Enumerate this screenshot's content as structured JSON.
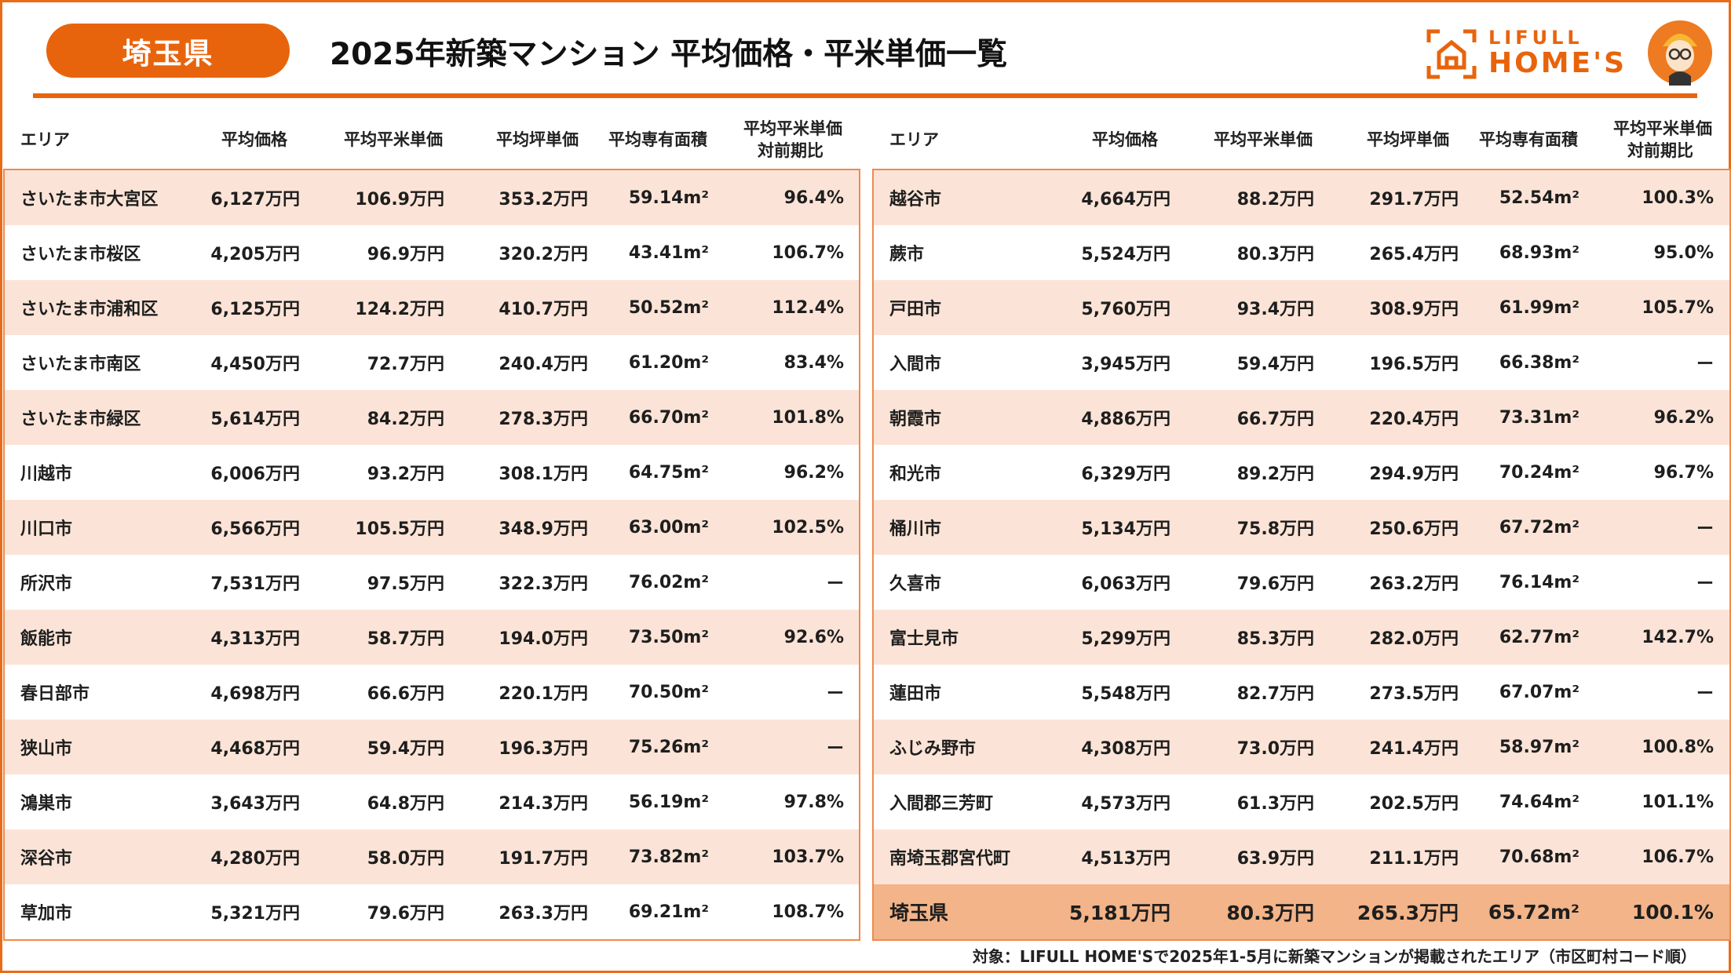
{
  "header": {
    "prefecture_badge": "埼玉県",
    "title": "2025年新築マンション 平均価格・平米単価一覧",
    "logo": {
      "line1": "LIFULL",
      "line2": "HOME'S"
    }
  },
  "colors": {
    "accent": "#E8640C",
    "row_alt": "#FBE4D7",
    "total_row": "#F2B488"
  },
  "columns": {
    "area": "エリア",
    "price": "平均価格",
    "sqm_price": "平均平米単価",
    "tsubo_price": "平均坪単価",
    "floor_area": "平均専有面積",
    "ratio_line1": "平均平米単価",
    "ratio_line2": "対前期比"
  },
  "left_rows": [
    {
      "area": "さいたま市大宮区",
      "price": "6,127万円",
      "sqm": "106.9万円",
      "tsubo": "353.2万円",
      "size": "59.14m²",
      "ratio": "96.4%"
    },
    {
      "area": "さいたま市桜区",
      "price": "4,205万円",
      "sqm": "96.9万円",
      "tsubo": "320.2万円",
      "size": "43.41m²",
      "ratio": "106.7%"
    },
    {
      "area": "さいたま市浦和区",
      "price": "6,125万円",
      "sqm": "124.2万円",
      "tsubo": "410.7万円",
      "size": "50.52m²",
      "ratio": "112.4%"
    },
    {
      "area": "さいたま市南区",
      "price": "4,450万円",
      "sqm": "72.7万円",
      "tsubo": "240.4万円",
      "size": "61.20m²",
      "ratio": "83.4%"
    },
    {
      "area": "さいたま市緑区",
      "price": "5,614万円",
      "sqm": "84.2万円",
      "tsubo": "278.3万円",
      "size": "66.70m²",
      "ratio": "101.8%"
    },
    {
      "area": "川越市",
      "price": "6,006万円",
      "sqm": "93.2万円",
      "tsubo": "308.1万円",
      "size": "64.75m²",
      "ratio": "96.2%"
    },
    {
      "area": "川口市",
      "price": "6,566万円",
      "sqm": "105.5万円",
      "tsubo": "348.9万円",
      "size": "63.00m²",
      "ratio": "102.5%"
    },
    {
      "area": "所沢市",
      "price": "7,531万円",
      "sqm": "97.5万円",
      "tsubo": "322.3万円",
      "size": "76.02m²",
      "ratio": "ー"
    },
    {
      "area": "飯能市",
      "price": "4,313万円",
      "sqm": "58.7万円",
      "tsubo": "194.0万円",
      "size": "73.50m²",
      "ratio": "92.6%"
    },
    {
      "area": "春日部市",
      "price": "4,698万円",
      "sqm": "66.6万円",
      "tsubo": "220.1万円",
      "size": "70.50m²",
      "ratio": "ー"
    },
    {
      "area": "狭山市",
      "price": "4,468万円",
      "sqm": "59.4万円",
      "tsubo": "196.3万円",
      "size": "75.26m²",
      "ratio": "ー"
    },
    {
      "area": "鴻巣市",
      "price": "3,643万円",
      "sqm": "64.8万円",
      "tsubo": "214.3万円",
      "size": "56.19m²",
      "ratio": "97.8%"
    },
    {
      "area": "深谷市",
      "price": "4,280万円",
      "sqm": "58.0万円",
      "tsubo": "191.7万円",
      "size": "73.82m²",
      "ratio": "103.7%"
    },
    {
      "area": "草加市",
      "price": "5,321万円",
      "sqm": "79.6万円",
      "tsubo": "263.3万円",
      "size": "69.21m²",
      "ratio": "108.7%"
    }
  ],
  "right_rows": [
    {
      "area": "越谷市",
      "price": "4,664万円",
      "sqm": "88.2万円",
      "tsubo": "291.7万円",
      "size": "52.54m²",
      "ratio": "100.3%"
    },
    {
      "area": "蕨市",
      "price": "5,524万円",
      "sqm": "80.3万円",
      "tsubo": "265.4万円",
      "size": "68.93m²",
      "ratio": "95.0%"
    },
    {
      "area": "戸田市",
      "price": "5,760万円",
      "sqm": "93.4万円",
      "tsubo": "308.9万円",
      "size": "61.99m²",
      "ratio": "105.7%"
    },
    {
      "area": "入間市",
      "price": "3,945万円",
      "sqm": "59.4万円",
      "tsubo": "196.5万円",
      "size": "66.38m²",
      "ratio": "ー"
    },
    {
      "area": "朝霞市",
      "price": "4,886万円",
      "sqm": "66.7万円",
      "tsubo": "220.4万円",
      "size": "73.31m²",
      "ratio": "96.2%"
    },
    {
      "area": "和光市",
      "price": "6,329万円",
      "sqm": "89.2万円",
      "tsubo": "294.9万円",
      "size": "70.24m²",
      "ratio": "96.7%"
    },
    {
      "area": "桶川市",
      "price": "5,134万円",
      "sqm": "75.8万円",
      "tsubo": "250.6万円",
      "size": "67.72m²",
      "ratio": "ー"
    },
    {
      "area": "久喜市",
      "price": "6,063万円",
      "sqm": "79.6万円",
      "tsubo": "263.2万円",
      "size": "76.14m²",
      "ratio": "ー"
    },
    {
      "area": "富士見市",
      "price": "5,299万円",
      "sqm": "85.3万円",
      "tsubo": "282.0万円",
      "size": "62.77m²",
      "ratio": "142.7%"
    },
    {
      "area": "蓮田市",
      "price": "5,548万円",
      "sqm": "82.7万円",
      "tsubo": "273.5万円",
      "size": "67.07m²",
      "ratio": "ー"
    },
    {
      "area": "ふじみ野市",
      "price": "4,308万円",
      "sqm": "73.0万円",
      "tsubo": "241.4万円",
      "size": "58.97m²",
      "ratio": "100.8%"
    },
    {
      "area": "入間郡三芳町",
      "price": "4,573万円",
      "sqm": "61.3万円",
      "tsubo": "202.5万円",
      "size": "74.64m²",
      "ratio": "101.1%"
    },
    {
      "area": "南埼玉郡宮代町",
      "price": "4,513万円",
      "sqm": "63.9万円",
      "tsubo": "211.1万円",
      "size": "70.68m²",
      "ratio": "106.7%"
    },
    {
      "area": "埼玉県",
      "price": "5,181万円",
      "sqm": "80.3万円",
      "tsubo": "265.3万円",
      "size": "65.72m²",
      "ratio": "100.1%",
      "total": true
    }
  ],
  "footer": "対象：LIFULL HOME'Sで2025年1-5月に新築マンションが掲載されたエリア（市区町村コード順）"
}
